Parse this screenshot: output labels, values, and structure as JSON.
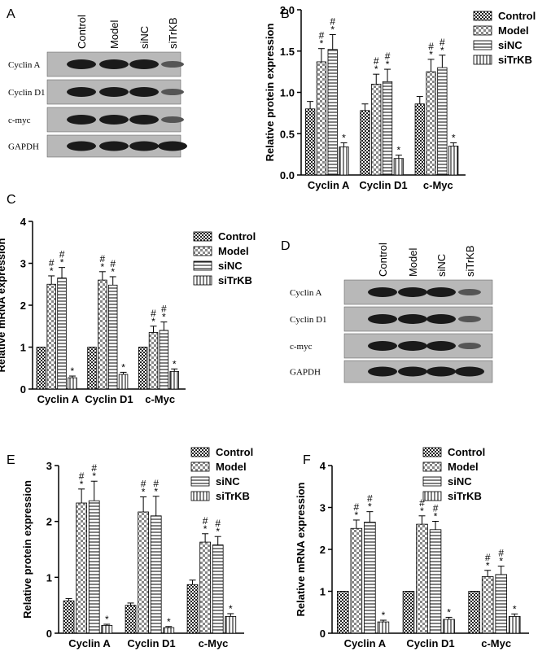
{
  "blots": [
    {
      "panel_label": "A",
      "columns": [
        "Control",
        "Model",
        "siNC",
        "siTrKB"
      ],
      "rows": [
        "Cyclin A",
        "Cyclin D1",
        "c-myc",
        "GAPDH"
      ]
    },
    {
      "panel_label": "D",
      "columns": [
        "Control",
        "Model",
        "siNC",
        "siTrKB"
      ],
      "rows": [
        "Cyclin A",
        "Cyclin D1",
        "c-myc",
        "GAPDH"
      ]
    }
  ],
  "chart_data": [
    {
      "type": "bar",
      "panel_label": "B",
      "ylabel": "Relative protein expression",
      "categories": [
        "Cyclin A",
        "Cyclin D1",
        "c-Myc"
      ],
      "ylim": [
        0,
        2
      ],
      "yticks": [
        {
          "value": 0,
          "label": "0.0"
        },
        0.5,
        {
          "value": 1,
          "label": "1.0"
        },
        1.5,
        {
          "value": 2,
          "label": "2.0"
        }
      ],
      "legend": "outside right",
      "series": [
        {
          "name": "Control",
          "pattern": "checker",
          "values": [
            0.8,
            0.78,
            0.86
          ],
          "errors": [
            0.09,
            0.08,
            0.09
          ]
        },
        {
          "name": "Model",
          "pattern": "dots",
          "values": [
            1.37,
            1.1,
            1.25
          ],
          "errors": [
            0.16,
            0.12,
            0.15
          ],
          "significance": [
            [
              "#",
              "*"
            ],
            [
              "#",
              "*"
            ],
            [
              "#",
              "*"
            ]
          ]
        },
        {
          "name": "siNC",
          "pattern": "hlines",
          "values": [
            1.52,
            1.13,
            1.3
          ],
          "errors": [
            0.18,
            0.15,
            0.15
          ],
          "significance": [
            [
              "#",
              "*"
            ],
            [
              "#",
              "*"
            ],
            [
              "#",
              "*"
            ]
          ]
        },
        {
          "name": "siTrKB",
          "pattern": "vlines",
          "values": [
            0.34,
            0.2,
            0.35
          ],
          "errors": [
            0.05,
            0.04,
            0.04
          ],
          "significance": [
            [
              "*"
            ],
            [
              "*"
            ],
            [
              "*"
            ]
          ]
        }
      ]
    },
    {
      "type": "bar",
      "panel_label": "C",
      "ylabel": "Relative mRNA expression",
      "categories": [
        "Cyclin A",
        "Cyclin D1",
        "c-Myc"
      ],
      "ylim": [
        0,
        4
      ],
      "yticks": [
        0,
        1,
        2,
        3,
        4
      ],
      "legend": "upper right",
      "series": [
        {
          "name": "Control",
          "pattern": "checker",
          "values": [
            1,
            1,
            1
          ],
          "errors": [
            0,
            0,
            0
          ]
        },
        {
          "name": "Model",
          "pattern": "dots",
          "values": [
            2.5,
            2.6,
            1.35
          ],
          "errors": [
            0.2,
            0.2,
            0.15
          ],
          "significance": [
            [
              "#",
              "*"
            ],
            [
              "#",
              "*"
            ],
            [
              "#",
              "*"
            ]
          ]
        },
        {
          "name": "siNC",
          "pattern": "hlines",
          "values": [
            2.65,
            2.48,
            1.4
          ],
          "errors": [
            0.25,
            0.2,
            0.2
          ],
          "significance": [
            [
              "#",
              "*"
            ],
            [
              "#",
              "*"
            ],
            [
              "#",
              "*"
            ]
          ]
        },
        {
          "name": "siTrKB",
          "pattern": "vlines",
          "values": [
            0.27,
            0.35,
            0.42
          ],
          "errors": [
            0.04,
            0.05,
            0.06
          ],
          "significance": [
            [
              "*"
            ],
            [
              "*"
            ],
            [
              "*"
            ]
          ]
        }
      ]
    },
    {
      "type": "bar",
      "panel_label": "E",
      "ylabel": "Relative protein expression",
      "categories": [
        "Cyclin A",
        "Cyclin D1",
        "c-Myc"
      ],
      "ylim": [
        0,
        3
      ],
      "yticks": [
        0,
        1,
        2,
        3
      ],
      "legend": "upper right",
      "series": [
        {
          "name": "Control",
          "pattern": "checker",
          "values": [
            0.58,
            0.5,
            0.87
          ],
          "errors": [
            0.04,
            0.04,
            0.08
          ]
        },
        {
          "name": "Model",
          "pattern": "dots",
          "values": [
            2.33,
            2.17,
            1.63
          ],
          "errors": [
            0.25,
            0.27,
            0.15
          ],
          "significance": [
            [
              "#",
              "*"
            ],
            [
              "#",
              "*"
            ],
            [
              "#",
              "*"
            ]
          ]
        },
        {
          "name": "siNC",
          "pattern": "hlines",
          "values": [
            2.37,
            2.1,
            1.58
          ],
          "errors": [
            0.35,
            0.35,
            0.15
          ],
          "significance": [
            [
              "#",
              "*"
            ],
            [
              "#",
              "*"
            ],
            [
              "#",
              "*"
            ]
          ]
        },
        {
          "name": "siTrKB",
          "pattern": "vlines",
          "values": [
            0.14,
            0.1,
            0.3
          ],
          "errors": [
            0.02,
            0.02,
            0.05
          ],
          "significance": [
            [
              "*"
            ],
            [
              "*"
            ],
            [
              "*"
            ]
          ]
        }
      ]
    },
    {
      "type": "bar",
      "panel_label": "F",
      "ylabel": "Relative mRNA expression",
      "categories": [
        "Cyclin A",
        "Cyclin D1",
        "c-Myc"
      ],
      "ylim": [
        0,
        4
      ],
      "yticks": [
        0,
        1,
        2,
        3,
        4
      ],
      "legend": "upper right",
      "series": [
        {
          "name": "Control",
          "pattern": "checker",
          "values": [
            1,
            1,
            1
          ],
          "errors": [
            0,
            0,
            0
          ]
        },
        {
          "name": "Model",
          "pattern": "dots",
          "values": [
            2.5,
            2.6,
            1.35
          ],
          "errors": [
            0.2,
            0.2,
            0.15
          ],
          "significance": [
            [
              "#",
              "*"
            ],
            [
              "#",
              "*"
            ],
            [
              "#",
              "*"
            ]
          ]
        },
        {
          "name": "siNC",
          "pattern": "hlines",
          "values": [
            2.65,
            2.47,
            1.4
          ],
          "errors": [
            0.25,
            0.2,
            0.2
          ],
          "significance": [
            [
              "#",
              "*"
            ],
            [
              "#",
              "*"
            ],
            [
              "#",
              "*"
            ]
          ]
        },
        {
          "name": "siTrKB",
          "pattern": "vlines",
          "values": [
            0.27,
            0.33,
            0.4
          ],
          "errors": [
            0.04,
            0.05,
            0.06
          ],
          "significance": [
            [
              "*"
            ],
            [
              "*"
            ],
            [
              "*"
            ]
          ]
        }
      ]
    }
  ]
}
